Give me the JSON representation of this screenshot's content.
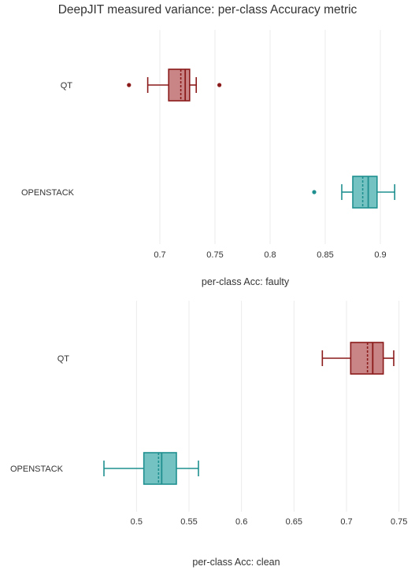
{
  "title": "DeepJIT measured variance: per-class Accuracy metric",
  "colors": {
    "QT": {
      "fill": "#c98586",
      "stroke": "#8b1a1a"
    },
    "OPENSTACK": {
      "fill": "#75c2c2",
      "stroke": "#1f8f8f"
    },
    "grid": "#ebebeb"
  },
  "chart_data": [
    {
      "type": "box",
      "orientation": "horizontal",
      "xlabel": "per-class Acc: faulty",
      "xlim": [
        0.63,
        0.925
      ],
      "xticks": [
        0.7,
        0.75,
        0.8,
        0.85,
        0.9
      ],
      "xtick_labels": [
        "0.7",
        "0.75",
        "0.8",
        "0.85",
        "0.9"
      ],
      "categories": [
        "QT",
        "OPENSTACK"
      ],
      "series": [
        {
          "category": "QT",
          "whisker_low": 0.689,
          "q1": 0.708,
          "median": 0.723,
          "q3": 0.727,
          "whisker_high": 0.733,
          "mean": 0.719,
          "outliers": [
            0.672,
            0.754
          ]
        },
        {
          "category": "OPENSTACK",
          "whisker_low": 0.865,
          "q1": 0.875,
          "median": 0.889,
          "q3": 0.897,
          "whisker_high": 0.913,
          "mean": 0.884,
          "outliers": [
            0.84
          ]
        }
      ]
    },
    {
      "type": "box",
      "orientation": "horizontal",
      "xlabel": "per-class Acc: clean",
      "xlim": [
        0.445,
        0.76
      ],
      "xticks": [
        0.5,
        0.55,
        0.6,
        0.65,
        0.7,
        0.75
      ],
      "xtick_labels": [
        "0.5",
        "0.55",
        "0.6",
        "0.65",
        "0.7",
        "0.75"
      ],
      "categories": [
        "QT",
        "OPENSTACK"
      ],
      "series": [
        {
          "category": "QT",
          "whisker_low": 0.677,
          "q1": 0.704,
          "median": 0.725,
          "q3": 0.735,
          "whisker_high": 0.745,
          "mean": 0.72,
          "outliers": []
        },
        {
          "category": "OPENSTACK",
          "whisker_low": 0.469,
          "q1": 0.507,
          "median": 0.524,
          "q3": 0.538,
          "whisker_high": 0.559,
          "mean": 0.521,
          "outliers": []
        }
      ]
    }
  ]
}
